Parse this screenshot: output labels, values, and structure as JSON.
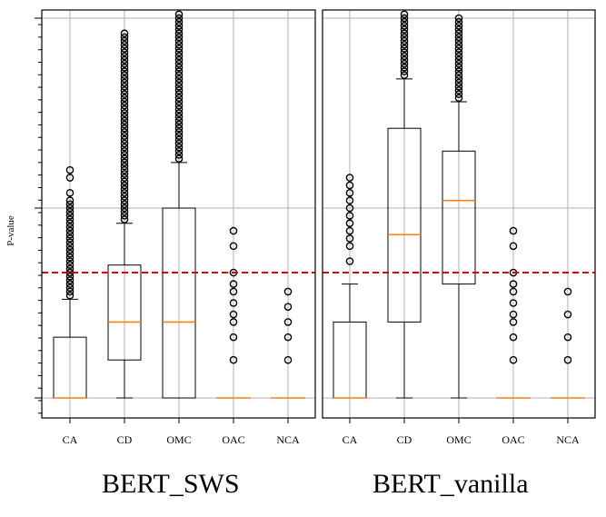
{
  "ylabel": "P-value",
  "chart_data": [
    {
      "type": "box",
      "title": "BERT_SWS",
      "ylabel": "P-value",
      "xlabel": "",
      "ylim": [
        -0.08,
        1.0
      ],
      "grid": true,
      "threshold_line": {
        "value": 0.33,
        "color": "#e8000b",
        "style": "dashed"
      },
      "categories": [
        "CA",
        "CD",
        "OMC",
        "OAC",
        "NCA"
      ],
      "boxes": [
        {
          "label": "CA",
          "whisker_low": 0.0,
          "q1": 0.0,
          "median": 0.0,
          "q3": 0.16,
          "whisker_high": 0.26,
          "outliers": [
            0.27,
            0.28,
            0.29,
            0.3,
            0.31,
            0.32,
            0.33,
            0.34,
            0.35,
            0.36,
            0.37,
            0.38,
            0.39,
            0.4,
            0.41,
            0.42,
            0.43,
            0.44,
            0.45,
            0.46,
            0.47,
            0.48,
            0.49,
            0.5,
            0.51,
            0.52,
            0.54,
            0.58,
            0.6
          ]
        },
        {
          "label": "CD",
          "whisker_low": 0.0,
          "q1": 0.1,
          "median": 0.2,
          "q3": 0.35,
          "whisker_high": 0.46,
          "outliers": [
            0.47,
            0.48,
            0.49,
            0.5,
            0.51,
            0.52,
            0.53,
            0.54,
            0.55,
            0.56,
            0.57,
            0.58,
            0.59,
            0.6,
            0.61,
            0.62,
            0.63,
            0.64,
            0.65,
            0.66,
            0.67,
            0.68,
            0.69,
            0.7,
            0.71,
            0.72,
            0.73,
            0.74,
            0.75,
            0.76,
            0.77,
            0.78,
            0.79,
            0.8,
            0.81,
            0.82,
            0.83,
            0.84,
            0.85,
            0.86,
            0.87,
            0.88,
            0.89,
            0.9,
            0.91,
            0.92,
            0.93,
            0.94,
            0.95,
            0.96
          ]
        },
        {
          "label": "OMC",
          "whisker_low": 0.0,
          "q1": 0.0,
          "median": 0.2,
          "q3": 0.5,
          "whisker_high": 0.62,
          "outliers": [
            0.63,
            0.64,
            0.65,
            0.66,
            0.67,
            0.68,
            0.69,
            0.7,
            0.71,
            0.72,
            0.73,
            0.74,
            0.75,
            0.76,
            0.77,
            0.78,
            0.79,
            0.8,
            0.81,
            0.82,
            0.83,
            0.84,
            0.85,
            0.86,
            0.87,
            0.88,
            0.89,
            0.9,
            0.91,
            0.92,
            0.93,
            0.94,
            0.95,
            0.96,
            0.97,
            0.98,
            0.99,
            1.0,
            1.01
          ]
        },
        {
          "label": "OAC",
          "whisker_low": 0.0,
          "q1": 0.0,
          "median": 0.0,
          "q3": 0.0,
          "whisker_high": 0.0,
          "outliers": [
            0.1,
            0.16,
            0.2,
            0.22,
            0.25,
            0.28,
            0.3,
            0.33,
            0.4,
            0.44
          ]
        },
        {
          "label": "NCA",
          "whisker_low": 0.0,
          "q1": 0.0,
          "median": 0.0,
          "q3": 0.0,
          "whisker_high": 0.0,
          "outliers": [
            0.1,
            0.16,
            0.2,
            0.24,
            0.28
          ]
        }
      ]
    },
    {
      "type": "box",
      "title": "BERT_vanilla",
      "ylabel": "",
      "xlabel": "",
      "ylim": [
        -0.08,
        1.0
      ],
      "grid": true,
      "threshold_line": {
        "value": 0.33,
        "color": "#e8000b",
        "style": "dashed"
      },
      "categories": [
        "CA",
        "CD",
        "OMC",
        "OAC",
        "NCA"
      ],
      "boxes": [
        {
          "label": "CA",
          "whisker_low": 0.0,
          "q1": 0.0,
          "median": 0.0,
          "q3": 0.2,
          "whisker_high": 0.3,
          "outliers": [
            0.36,
            0.4,
            0.42,
            0.44,
            0.46,
            0.48,
            0.5,
            0.52,
            0.54,
            0.56,
            0.58
          ]
        },
        {
          "label": "CD",
          "whisker_low": 0.0,
          "q1": 0.2,
          "median": 0.43,
          "q3": 0.71,
          "whisker_high": 0.84,
          "outliers": [
            0.85,
            0.86,
            0.87,
            0.88,
            0.89,
            0.9,
            0.91,
            0.92,
            0.93,
            0.94,
            0.95,
            0.96,
            0.97,
            0.98,
            0.99,
            1.0,
            1.01
          ]
        },
        {
          "label": "OMC",
          "whisker_low": 0.0,
          "q1": 0.3,
          "median": 0.52,
          "q3": 0.65,
          "whisker_high": 0.78,
          "outliers": [
            0.79,
            0.8,
            0.81,
            0.82,
            0.83,
            0.84,
            0.85,
            0.86,
            0.87,
            0.88,
            0.89,
            0.9,
            0.91,
            0.92,
            0.93,
            0.94,
            0.95,
            0.96,
            0.97,
            0.98,
            0.99,
            1.0
          ]
        },
        {
          "label": "OAC",
          "whisker_low": 0.0,
          "q1": 0.0,
          "median": 0.0,
          "q3": 0.0,
          "whisker_high": 0.0,
          "outliers": [
            0.1,
            0.16,
            0.2,
            0.22,
            0.25,
            0.28,
            0.3,
            0.33,
            0.4,
            0.44
          ]
        },
        {
          "label": "NCA",
          "whisker_low": 0.0,
          "q1": 0.0,
          "median": 0.0,
          "q3": 0.0,
          "whisker_high": 0.0,
          "outliers": [
            0.1,
            0.16,
            0.22,
            0.28
          ]
        }
      ]
    }
  ],
  "colors": {
    "median": "#ff7f0e",
    "box": "#000000",
    "grid": "#b0b0b0",
    "threshold": "#e8000b",
    "frame": "#000000"
  }
}
